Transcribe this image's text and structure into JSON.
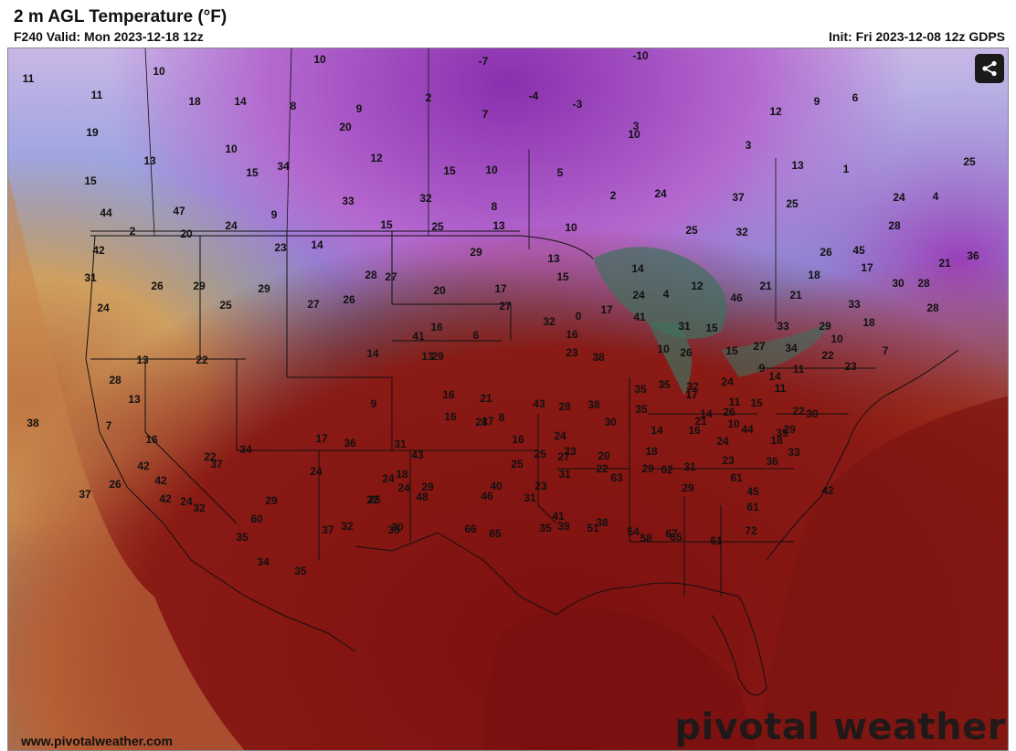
{
  "header": {
    "title": "2 m AGL Temperature (°F)",
    "valid": "F240 Valid: Mon 2023-12-18 12z",
    "init": "Init: Fri 2023-12-08 12z GDPS"
  },
  "footer": {
    "url": "www.pivotalweather.com",
    "brand": "pivotal weather"
  },
  "share_icon": "share-icon",
  "colors": {
    "gulf": "#7a1212",
    "southwest": "#a83a1f",
    "cold_purple": "#a04ec0",
    "blue": "#2f5fc4",
    "teal_green": "#3f6b5c",
    "pale_yellow": "#d9d49a"
  },
  "temperature_labels": [
    "16",
    "13",
    "-3",
    "6",
    "-7",
    "20",
    "-10",
    "16",
    "11",
    "10",
    "10",
    "11",
    "18",
    "14",
    "8",
    "9",
    "2",
    "7",
    "-4",
    "-3",
    "10",
    "9",
    "6",
    "12",
    "3",
    "19",
    "10",
    "20",
    "12",
    "13",
    "15",
    "10",
    "5",
    "3",
    "13",
    "1",
    "25",
    "15",
    "34",
    "32",
    "8",
    "2",
    "24",
    "37",
    "25",
    "24",
    "4",
    "15",
    "44",
    "47",
    "24",
    "9",
    "33",
    "15",
    "25",
    "13",
    "10",
    "25",
    "32",
    "28",
    "2",
    "20",
    "23",
    "14",
    "29",
    "13",
    "26",
    "45",
    "36",
    "42",
    "28",
    "27",
    "15",
    "14",
    "4",
    "12",
    "46",
    "21",
    "21",
    "18",
    "17",
    "21",
    "28",
    "31",
    "26",
    "29",
    "25",
    "29",
    "27",
    "26",
    "20",
    "17",
    "27",
    "24",
    "32",
    "0",
    "17",
    "41",
    "31",
    "33",
    "33",
    "30",
    "28",
    "24",
    "16",
    "6",
    "16",
    "10",
    "15",
    "27",
    "34",
    "29",
    "18",
    "7",
    "13",
    "22",
    "41",
    "14",
    "13",
    "23",
    "35",
    "26",
    "15",
    "9",
    "10",
    "23",
    "28",
    "9",
    "29",
    "38",
    "35",
    "32",
    "24",
    "14",
    "11",
    "13",
    "7",
    "16",
    "21",
    "43",
    "38",
    "35",
    "17",
    "11",
    "11",
    "22",
    "38",
    "16",
    "8",
    "28",
    "30",
    "14",
    "14",
    "10",
    "15",
    "22",
    "30",
    "42",
    "26",
    "36",
    "31",
    "17",
    "16",
    "17",
    "16",
    "24",
    "21",
    "26",
    "34",
    "43",
    "28",
    "27",
    "20",
    "18",
    "16",
    "24",
    "18",
    "29",
    "42",
    "37",
    "18",
    "25",
    "25",
    "23",
    "22",
    "29",
    "31",
    "44",
    "39",
    "37",
    "24",
    "22",
    "29",
    "24",
    "22",
    "24",
    "29",
    "40",
    "31",
    "29",
    "23",
    "36",
    "33",
    "42",
    "42",
    "32",
    "25",
    "24",
    "48",
    "46",
    "23",
    "63",
    "62",
    "61",
    "45",
    "60",
    "37",
    "30",
    "31",
    "41",
    "51",
    "54",
    "58",
    "65",
    "61",
    "61",
    "35",
    "32",
    "35",
    "66",
    "65",
    "35",
    "39",
    "38",
    "67",
    "72",
    "34",
    "35"
  ]
}
